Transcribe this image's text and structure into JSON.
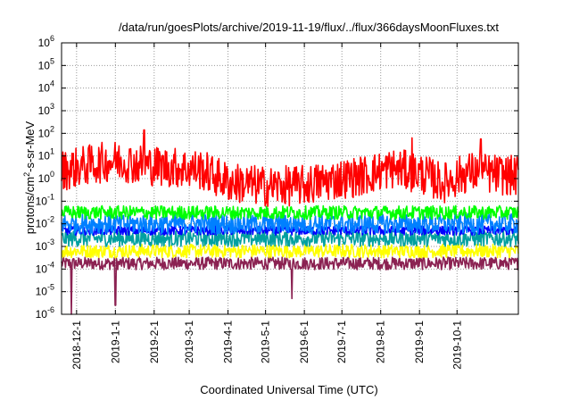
{
  "chart_data": {
    "type": "line",
    "title": "/data/run/goesPlots/archive/2019-11-19/flux/../flux/366daysMoonFluxes.txt",
    "xlabel": "Coordinated Universal Time (UTC)",
    "ylabel_base": "protons/cm",
    "ylabel_sup": "2",
    "ylabel_rest": "-s-sr-MeV",
    "x_range": [
      "2018-11-19",
      "2019-11-19"
    ],
    "x_ticks": [
      "2018-12-1",
      "2019-1-1",
      "2019-2-1",
      "2019-3-1",
      "2019-4-1",
      "2019-5-1",
      "2019-6-1",
      "2019-7-1",
      "2019-8-1",
      "2019-9-1",
      "2019-10-1"
    ],
    "y_scale": "log",
    "ylim": [
      1e-06,
      1000000.0
    ],
    "y_tick_base": "10",
    "y_tick_exponents": [
      "-6",
      "-5",
      "-4",
      "-3",
      "-2",
      "-1",
      "0",
      "1",
      "2",
      "3",
      "4",
      "5",
      "6"
    ],
    "grid": true,
    "series": [
      {
        "color": "#8b2252",
        "center_log10": -3.75,
        "spread": 0.28,
        "spikes": [
          {
            "date": "2018-11-27",
            "log10": -6.0
          },
          {
            "date": "2019-1-1",
            "log10": -5.6
          },
          {
            "date": "2019-5-22",
            "log10": -5.3
          }
        ]
      },
      {
        "color": "#ffff00",
        "center_log10": -3.2,
        "spread": 0.3
      },
      {
        "color": "#00a0a0",
        "center_log10": -2.65,
        "spread": 0.35
      },
      {
        "color": "#0000ff",
        "center_log10": -2.3,
        "spread": 0.2
      },
      {
        "color": "#0080ff",
        "center_log10": -2.0,
        "spread": 0.45
      },
      {
        "color": "#00ff00",
        "center_log10": -1.5,
        "spread": 0.3
      },
      {
        "color": "#ff0000",
        "profile": [
          {
            "date": "2018-11-19",
            "log10": 0.35
          },
          {
            "date": "2018-12-10",
            "log10": 0.6
          },
          {
            "date": "2019-1-1",
            "log10": 0.8
          },
          {
            "date": "2019-1-25",
            "log10": 0.6
          },
          {
            "date": "2019-2-15",
            "log10": 0.5
          },
          {
            "date": "2019-3-10",
            "log10": 0.4
          },
          {
            "date": "2019-4-1",
            "log10": -0.15
          },
          {
            "date": "2019-5-1",
            "log10": -0.35
          },
          {
            "date": "2019-6-1",
            "log10": -0.3
          },
          {
            "date": "2019-6-25",
            "log10": -0.05
          },
          {
            "date": "2019-7-15",
            "log10": 0.1
          },
          {
            "date": "2019-8-10",
            "log10": 0.45
          },
          {
            "date": "2019-9-1",
            "log10": 0.25
          },
          {
            "date": "2019-9-20",
            "log10": -0.2
          },
          {
            "date": "2019-10-10",
            "log10": 0.3
          },
          {
            "date": "2019-11-19",
            "log10": 0.1
          }
        ],
        "spread": 0.9,
        "spikes": [
          {
            "date": "2019-1-24",
            "log10": 2.15
          },
          {
            "date": "2019-8-26",
            "log10": 1.8
          },
          {
            "date": "2019-10-20",
            "log10": 1.75
          }
        ]
      }
    ]
  }
}
